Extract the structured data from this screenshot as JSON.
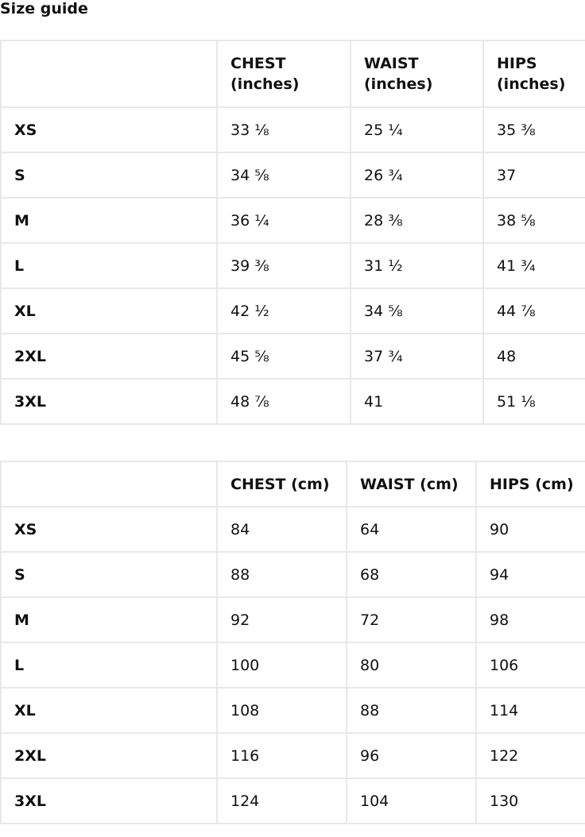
{
  "title": "Size guide",
  "inches_table": {
    "headers": [
      "",
      "CHEST (inches)",
      "WAIST (inches)",
      "HIPS (inches)"
    ],
    "rows": [
      [
        "XS",
        "33 ⅛",
        "25 ¼",
        "35 ⅜"
      ],
      [
        "S",
        "34 ⅝",
        "26 ¾",
        "37"
      ],
      [
        "M",
        "36 ¼",
        "28 ⅜",
        "38 ⅝"
      ],
      [
        "L",
        "39 ⅜",
        "31 ½",
        "41 ¾"
      ],
      [
        "XL",
        "42 ½",
        "34 ⅝",
        "44 ⅞"
      ],
      [
        "2XL",
        "45 ⅝",
        "37 ¾",
        "48"
      ],
      [
        "3XL",
        "48 ⅞",
        "41",
        "51 ⅛"
      ]
    ]
  },
  "cm_table": {
    "headers": [
      "",
      "CHEST (cm)",
      "WAIST (cm)",
      "HIPS (cm)"
    ],
    "rows": [
      [
        "XS",
        "84",
        "64",
        "90"
      ],
      [
        "S",
        "88",
        "68",
        "94"
      ],
      [
        "M",
        "92",
        "72",
        "98"
      ],
      [
        "L",
        "100",
        "80",
        "106"
      ],
      [
        "XL",
        "108",
        "88",
        "114"
      ],
      [
        "2XL",
        "116",
        "96",
        "122"
      ],
      [
        "3XL",
        "124",
        "104",
        "130"
      ]
    ]
  }
}
